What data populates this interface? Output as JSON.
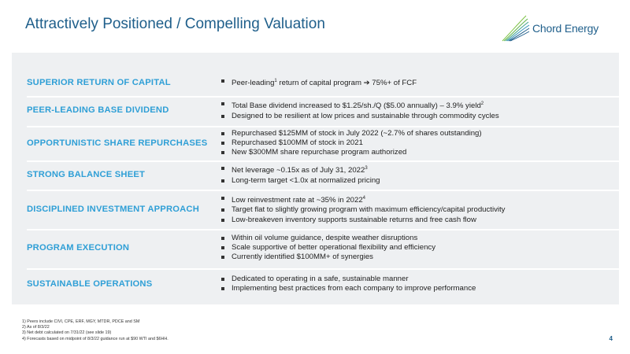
{
  "title": "Attractively Positioned / Compelling Valuation",
  "logo": {
    "text": "Chord Energy",
    "icon": "chord-energy-logo-icon",
    "color": "#1f5f8b",
    "accent": "#7cc242"
  },
  "rows": [
    {
      "label": "SUPERIOR RETURN OF CAPITAL",
      "bullets": [
        {
          "pre": "Peer-leading",
          "sup": "1",
          "post": " return of capital program ➔ 75%+ of FCF"
        }
      ]
    },
    {
      "label": "PEER-LEADING BASE DIVIDEND",
      "bullets": [
        {
          "pre": "Total Base dividend increased to $1.25/sh./Q ($5.00 annually) – 3.9% yield",
          "sup": "2",
          "post": ""
        },
        {
          "pre": "Designed to be resilient at low prices and sustainable through commodity cycles",
          "sup": "",
          "post": ""
        }
      ]
    },
    {
      "label": "OPPORTUNISTIC SHARE REPURCHASES",
      "bullets": [
        {
          "pre": "Repurchased $125MM of stock in July 2022 (~2.7% of shares outstanding)",
          "sup": "",
          "post": ""
        },
        {
          "pre": "Repurchased $100MM of stock in 2021",
          "sup": "",
          "post": ""
        },
        {
          "pre": "New $300MM share repurchase program authorized",
          "sup": "",
          "post": ""
        }
      ]
    },
    {
      "label": "STRONG BALANCE SHEET",
      "bullets": [
        {
          "pre": "Net leverage ~0.15x as of July 31, 2022",
          "sup": "3",
          "post": ""
        },
        {
          "pre": "Long-term target <1.0x at normalized pricing",
          "sup": "",
          "post": ""
        }
      ]
    },
    {
      "label": "DISCIPLINED INVESTMENT APPROACH",
      "bullets": [
        {
          "pre": "Low reinvestment rate at ~35% in 2022",
          "sup": "4",
          "post": ""
        },
        {
          "pre": "Target flat to slightly growing program with maximum efficiency/capital productivity",
          "sup": "",
          "post": ""
        },
        {
          "pre": "Low-breakeven inventory supports sustainable returns and free cash flow",
          "sup": "",
          "post": ""
        }
      ]
    },
    {
      "label": "PROGRAM EXECUTION",
      "bullets": [
        {
          "pre": "Within oil volume guidance, despite weather disruptions",
          "sup": "",
          "post": ""
        },
        {
          "pre": "Scale supportive of better operational flexibility and efficiency",
          "sup": "",
          "post": ""
        },
        {
          "pre": "Currently identified $100MM+ of synergies",
          "sup": "",
          "post": ""
        }
      ]
    },
    {
      "label": "SUSTAINABLE OPERATIONS",
      "bullets": [
        {
          "pre": "Dedicated to operating in a safe, sustainable manner",
          "sup": "",
          "post": ""
        },
        {
          "pre": "Implementing best practices from each company to improve performance",
          "sup": "",
          "post": ""
        }
      ]
    }
  ],
  "footnotes": [
    "1)   Peers include CIVI, CPE, ERF, MGY, MTDR, PDCE and SM",
    "2)   As of 8/3/22",
    "3)   Net debt calculated on 7/31/22 (see slide 19)",
    "4)   Forecasts based on midpoint of 8/3/22 guidance run at $90 WTI and $6HH."
  ],
  "page_number": "4"
}
